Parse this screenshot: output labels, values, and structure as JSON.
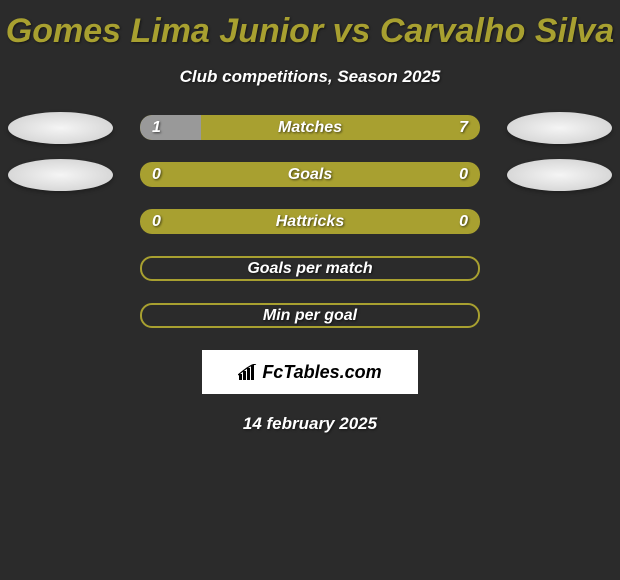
{
  "title": "Gomes Lima Junior vs Carvalho Silva",
  "subtitle": "Club competitions, Season 2025",
  "date": "14 february 2025",
  "logo": {
    "text": "FcTables.com"
  },
  "colors": {
    "background": "#2b2b2b",
    "accent": "#a8a030",
    "bar_left_fill": "#999999",
    "text": "#ffffff",
    "ellipse_bg": "#e8e8e8"
  },
  "stats": [
    {
      "label": "Matches",
      "left_value": "1",
      "right_value": "7",
      "has_values": true,
      "has_ellipses": true,
      "left_pct": 18,
      "bar_bg": "#a8a030"
    },
    {
      "label": "Goals",
      "left_value": "0",
      "right_value": "0",
      "has_values": true,
      "has_ellipses": true,
      "left_pct": 0,
      "bar_bg": "#a8a030"
    },
    {
      "label": "Hattricks",
      "left_value": "0",
      "right_value": "0",
      "has_values": true,
      "has_ellipses": false,
      "left_pct": 0,
      "bar_bg": "#a8a030"
    },
    {
      "label": "Goals per match",
      "left_value": "",
      "right_value": "",
      "has_values": false,
      "has_ellipses": false,
      "left_pct": 0,
      "bar_bg": "outline"
    },
    {
      "label": "Min per goal",
      "left_value": "",
      "right_value": "",
      "has_values": false,
      "has_ellipses": false,
      "left_pct": 0,
      "bar_bg": "outline"
    }
  ]
}
